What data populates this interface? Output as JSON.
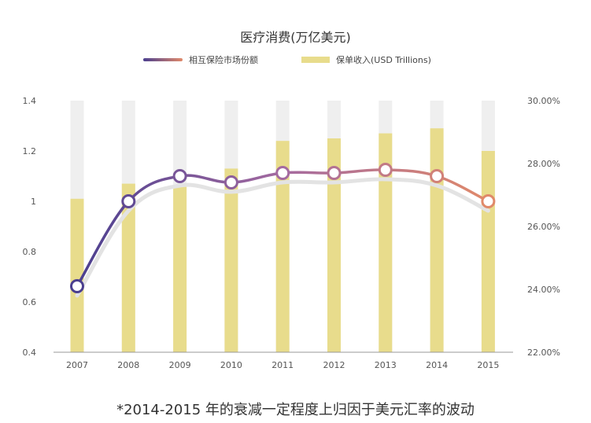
{
  "chart_data": {
    "type": "bar+line",
    "title": "医疗消费(万亿美元)",
    "categories": [
      "2007",
      "2008",
      "2009",
      "2010",
      "2011",
      "2012",
      "2013",
      "2014",
      "2015"
    ],
    "series": [
      {
        "name": "保单收入(USD Trillions)",
        "type": "bar",
        "axis": "left",
        "values": [
          1.01,
          1.07,
          1.06,
          1.13,
          1.24,
          1.25,
          1.27,
          1.29,
          1.2
        ]
      },
      {
        "name": "相互保险市场份额",
        "type": "line",
        "axis": "right",
        "values": [
          24.1,
          26.8,
          27.6,
          27.4,
          27.7,
          27.7,
          27.8,
          27.6,
          26.8
        ]
      }
    ],
    "y_left": {
      "min": 0.4,
      "max": 1.4,
      "ticks": [
        "0.4",
        "0.6",
        "0.8",
        "1",
        "1.2",
        "1.4"
      ]
    },
    "y_right": {
      "min": 22,
      "max": 30,
      "ticks": [
        "22.00%",
        "24.00%",
        "26.00%",
        "28.00%",
        "30.00%"
      ]
    },
    "legend_position": "top-center",
    "grid": false,
    "colors": {
      "bar": "#e8dc8c",
      "bar_background": "#efefef",
      "line_start": "#4b3f8f",
      "line_end": "#e0896a",
      "shadow": "#e3e3e3",
      "axis": "#999999",
      "tick_text": "#555555"
    }
  },
  "caption": "*2014-2015 年的衰减一定程度上归因于美元汇率的波动"
}
